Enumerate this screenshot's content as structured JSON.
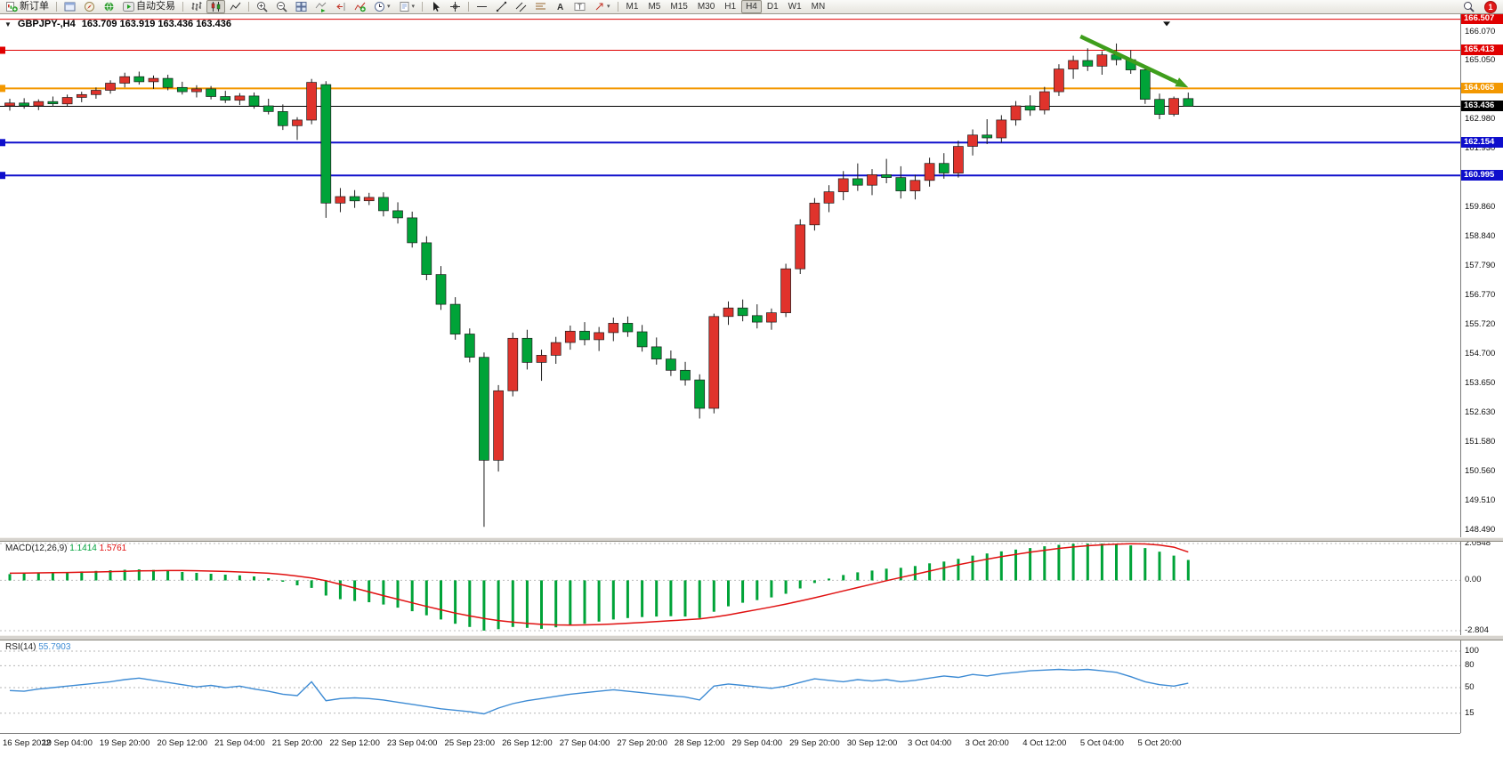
{
  "toolbar": {
    "new_order_label": "新订单",
    "autotrading_label": "自动交易",
    "timeframes": [
      "M1",
      "M5",
      "M15",
      "M30",
      "H1",
      "H4",
      "D1",
      "W1",
      "MN"
    ],
    "active_timeframe": "H4",
    "notification_badge": "1"
  },
  "icons": {
    "collapse": "▼",
    "caret": "▾"
  },
  "chart_title": {
    "symbol_period": "GBPJPY-,H4",
    "ohlc_text": "163.709 163.919 163.436 163.436"
  },
  "chart_data": {
    "type": "candlestick",
    "symbol": "GBPJPY-",
    "timeframe": "H4",
    "current_ohlc": {
      "open": "163.709",
      "high": "163.919",
      "low": "163.436",
      "close": "163.436"
    },
    "ylim": [
      148.23,
      166.62
    ],
    "colors": {
      "bull": "#e0332c",
      "bear": "#00a338",
      "outline": "#1c1c1c",
      "level_red": "#e00000",
      "level_orange": "#f39800",
      "level_blue": "#0e0ecc",
      "price_line": "#000000",
      "arrow": "#3f9e1c"
    },
    "price_ticks": [
      "166.070",
      "165.050",
      "162.980",
      "161.930",
      "159.860",
      "158.840",
      "157.790",
      "156.770",
      "155.720",
      "154.700",
      "153.650",
      "152.630",
      "151.580",
      "150.560",
      "149.510",
      "148.490"
    ],
    "price_tags": [
      {
        "text": "166.507",
        "value": 166.507,
        "bg": "#e00000"
      },
      {
        "text": "165.413",
        "value": 165.413,
        "bg": "#e00000"
      },
      {
        "text": "164.065",
        "value": 164.065,
        "bg": "#f39800"
      },
      {
        "text": "163.436",
        "value": 163.436,
        "bg": "#000000"
      },
      {
        "text": "162.154",
        "value": 162.154,
        "bg": "#0e0ecc"
      },
      {
        "text": "160.995",
        "value": 160.995,
        "bg": "#0e0ecc"
      }
    ],
    "levels": [
      {
        "price": 166.507,
        "color": "#e00000",
        "w": 1,
        "left_tag": false
      },
      {
        "price": 165.413,
        "color": "#e00000",
        "w": 1,
        "left_tag": true
      },
      {
        "price": 164.065,
        "color": "#f39800",
        "w": 2,
        "left_tag": true
      },
      {
        "price": 163.436,
        "color": "#000000",
        "w": 1,
        "left_tag": false
      },
      {
        "price": 162.154,
        "color": "#0e0ecc",
        "w": 2,
        "left_tag": true
      },
      {
        "price": 160.995,
        "color": "#0e0ecc",
        "w": 2,
        "left_tag": true
      }
    ],
    "annotation_arrow": {
      "x1_bar": 74.5,
      "y1_price": 165.9,
      "x2_bar": 82,
      "y2_price": 164.1
    },
    "marker_triangle": {
      "bar": 80.5,
      "price": 166.42
    },
    "label_stride": 4,
    "time_labels": [
      "16 Sep 2022",
      "19 Sep 04:00",
      "19 Sep 20:00",
      "20 Sep 12:00",
      "21 Sep 04:00",
      "21 Sep 20:00",
      "22 Sep 12:00",
      "23 Sep 04:00",
      "25 Sep 23:00",
      "26 Sep 12:00",
      "27 Sep 04:00",
      "27 Sep 20:00",
      "28 Sep 12:00",
      "29 Sep 04:00",
      "29 Sep 20:00",
      "30 Sep 12:00",
      "3 Oct 04:00",
      "3 Oct 20:00",
      "4 Oct 12:00",
      "5 Oct 04:00",
      "5 Oct 20:00"
    ],
    "candles": [
      [
        163.45,
        163.7,
        163.28,
        163.55
      ],
      [
        163.55,
        163.72,
        163.35,
        163.45
      ],
      [
        163.45,
        163.68,
        163.3,
        163.6
      ],
      [
        163.6,
        163.78,
        163.42,
        163.52
      ],
      [
        163.52,
        163.85,
        163.45,
        163.75
      ],
      [
        163.75,
        163.95,
        163.58,
        163.85
      ],
      [
        163.85,
        164.1,
        163.7,
        164.0
      ],
      [
        164.0,
        164.35,
        163.88,
        164.25
      ],
      [
        164.25,
        164.62,
        164.1,
        164.48
      ],
      [
        164.48,
        164.66,
        164.2,
        164.3
      ],
      [
        164.3,
        164.52,
        164.05,
        164.42
      ],
      [
        164.42,
        164.55,
        164.0,
        164.1
      ],
      [
        164.1,
        164.3,
        163.85,
        163.95
      ],
      [
        163.95,
        164.18,
        163.75,
        164.05
      ],
      [
        164.05,
        164.15,
        163.68,
        163.78
      ],
      [
        163.78,
        163.98,
        163.55,
        163.65
      ],
      [
        163.65,
        163.9,
        163.48,
        163.8
      ],
      [
        163.8,
        163.92,
        163.35,
        163.45
      ],
      [
        163.45,
        163.7,
        163.15,
        163.25
      ],
      [
        163.25,
        163.5,
        162.6,
        162.75
      ],
      [
        162.75,
        163.05,
        162.25,
        162.95
      ],
      [
        162.95,
        164.4,
        162.8,
        164.28
      ],
      [
        164.2,
        164.32,
        159.5,
        160.02
      ],
      [
        160.02,
        160.55,
        159.7,
        160.25
      ],
      [
        160.25,
        160.48,
        159.85,
        160.1
      ],
      [
        160.1,
        160.38,
        159.95,
        160.22
      ],
      [
        160.22,
        160.4,
        159.55,
        159.75
      ],
      [
        159.75,
        160.05,
        159.3,
        159.5
      ],
      [
        159.5,
        159.72,
        158.45,
        158.62
      ],
      [
        158.62,
        158.85,
        157.3,
        157.5
      ],
      [
        157.5,
        157.8,
        156.25,
        156.45
      ],
      [
        156.45,
        156.7,
        155.2,
        155.4
      ],
      [
        155.4,
        155.6,
        154.4,
        154.58
      ],
      [
        154.58,
        154.75,
        148.6,
        150.95
      ],
      [
        150.95,
        153.6,
        150.55,
        153.4
      ],
      [
        153.4,
        155.45,
        153.2,
        155.25
      ],
      [
        155.25,
        155.55,
        154.15,
        154.4
      ],
      [
        154.4,
        154.85,
        153.75,
        154.65
      ],
      [
        154.65,
        155.3,
        154.35,
        155.1
      ],
      [
        155.1,
        155.7,
        154.85,
        155.5
      ],
      [
        155.5,
        155.82,
        155.0,
        155.2
      ],
      [
        155.2,
        155.65,
        154.8,
        155.45
      ],
      [
        155.45,
        155.98,
        155.15,
        155.78
      ],
      [
        155.78,
        156.02,
        155.3,
        155.48
      ],
      [
        155.48,
        155.72,
        154.78,
        154.95
      ],
      [
        154.95,
        155.28,
        154.32,
        154.52
      ],
      [
        154.52,
        154.82,
        153.92,
        154.12
      ],
      [
        154.12,
        154.42,
        153.58,
        153.78
      ],
      [
        153.78,
        153.98,
        152.42,
        152.78
      ],
      [
        152.78,
        156.12,
        152.6,
        156.02
      ],
      [
        156.02,
        156.55,
        155.72,
        156.32
      ],
      [
        156.32,
        156.62,
        155.85,
        156.05
      ],
      [
        156.05,
        156.45,
        155.6,
        155.82
      ],
      [
        155.82,
        156.3,
        155.55,
        156.15
      ],
      [
        156.15,
        157.88,
        156.0,
        157.7
      ],
      [
        157.7,
        159.45,
        157.52,
        159.25
      ],
      [
        159.25,
        160.2,
        159.05,
        160.02
      ],
      [
        160.02,
        160.65,
        159.7,
        160.42
      ],
      [
        160.42,
        161.15,
        160.12,
        160.88
      ],
      [
        160.88,
        161.42,
        160.45,
        160.65
      ],
      [
        160.65,
        161.22,
        160.3,
        161.02
      ],
      [
        161.02,
        161.58,
        160.72,
        160.92
      ],
      [
        160.92,
        161.32,
        160.18,
        160.45
      ],
      [
        160.45,
        161.02,
        160.15,
        160.82
      ],
      [
        160.82,
        161.62,
        160.6,
        161.42
      ],
      [
        161.42,
        161.78,
        160.88,
        161.08
      ],
      [
        161.08,
        162.22,
        160.92,
        162.02
      ],
      [
        162.02,
        162.62,
        161.7,
        162.42
      ],
      [
        162.42,
        162.98,
        162.1,
        162.32
      ],
      [
        162.32,
        163.12,
        162.15,
        162.95
      ],
      [
        162.95,
        163.62,
        162.75,
        163.45
      ],
      [
        163.45,
        163.82,
        163.1,
        163.3
      ],
      [
        163.3,
        164.12,
        163.15,
        163.95
      ],
      [
        163.95,
        164.92,
        163.8,
        164.75
      ],
      [
        164.75,
        165.22,
        164.4,
        165.05
      ],
      [
        165.05,
        165.48,
        164.68,
        164.85
      ],
      [
        164.85,
        165.38,
        164.55,
        165.25
      ],
      [
        165.25,
        165.65,
        164.88,
        165.08
      ],
      [
        165.08,
        165.42,
        164.58,
        164.72
      ],
      [
        164.72,
        164.85,
        163.52,
        163.68
      ],
      [
        163.68,
        163.88,
        162.98,
        163.15
      ],
      [
        163.15,
        163.78,
        163.08,
        163.71
      ],
      [
        163.709,
        163.919,
        163.436,
        163.436
      ]
    ],
    "macd": {
      "title": "MACD(12,26,9)",
      "main_value": "1.1414",
      "signal_value": "1.5761",
      "hist_color": "#00a338",
      "signal_color": "#e01010",
      "ylim": [
        -3.052,
        2.154
      ],
      "axis_labels": [
        {
          "text": "2.0548",
          "v": 2.0548,
          "dashed": true
        },
        {
          "text": "0.00",
          "v": 0,
          "dashed": true
        },
        {
          "text": "-2.804",
          "v": -2.804,
          "dashed": true
        }
      ],
      "hist": [
        0.35,
        0.38,
        0.41,
        0.44,
        0.47,
        0.5,
        0.53,
        0.56,
        0.59,
        0.61,
        0.58,
        0.53,
        0.47,
        0.42,
        0.37,
        0.32,
        0.28,
        0.22,
        0.12,
        -0.08,
        -0.28,
        -0.42,
        -0.85,
        -1.05,
        -1.15,
        -1.22,
        -1.35,
        -1.52,
        -1.72,
        -1.95,
        -2.18,
        -2.42,
        -2.6,
        -2.8,
        -2.72,
        -2.6,
        -2.65,
        -2.7,
        -2.62,
        -2.52,
        -2.42,
        -2.3,
        -2.18,
        -2.1,
        -2.05,
        -2.02,
        -2.0,
        -2.02,
        -2.1,
        -1.75,
        -1.45,
        -1.25,
        -1.1,
        -0.95,
        -0.75,
        -0.45,
        -0.15,
        0.1,
        0.3,
        0.45,
        0.55,
        0.65,
        0.7,
        0.8,
        0.95,
        1.05,
        1.2,
        1.38,
        1.5,
        1.62,
        1.72,
        1.8,
        1.9,
        1.98,
        2.04,
        2.05,
        2.05,
        2.02,
        1.95,
        1.8,
        1.6,
        1.38,
        1.14
      ],
      "signal": [
        0.4,
        0.41,
        0.42,
        0.43,
        0.44,
        0.46,
        0.47,
        0.49,
        0.51,
        0.53,
        0.54,
        0.55,
        0.55,
        0.54,
        0.52,
        0.5,
        0.47,
        0.44,
        0.4,
        0.33,
        0.24,
        0.13,
        -0.02,
        -0.22,
        -0.43,
        -0.64,
        -0.85,
        -1.05,
        -1.25,
        -1.45,
        -1.64,
        -1.82,
        -1.98,
        -2.12,
        -2.24,
        -2.33,
        -2.4,
        -2.45,
        -2.48,
        -2.49,
        -2.48,
        -2.46,
        -2.43,
        -2.39,
        -2.35,
        -2.3,
        -2.25,
        -2.2,
        -2.15,
        -2.05,
        -1.92,
        -1.78,
        -1.63,
        -1.48,
        -1.32,
        -1.15,
        -0.97,
        -0.78,
        -0.59,
        -0.4,
        -0.21,
        -0.02,
        0.16,
        0.34,
        0.52,
        0.7,
        0.87,
        1.03,
        1.18,
        1.32,
        1.45,
        1.57,
        1.68,
        1.78,
        1.86,
        1.93,
        1.98,
        2.02,
        2.04,
        2.03,
        1.97,
        1.85,
        1.58
      ]
    },
    "rsi": {
      "title": "RSI(14)",
      "value": "55.7903",
      "color": "#3d8bd4",
      "ylim": [
        -9.76,
        114.6
      ],
      "levels": [
        {
          "text": "100",
          "v": 100,
          "dashed": true
        },
        {
          "text": "80",
          "v": 80,
          "dashed": true
        },
        {
          "text": "50",
          "v": 50,
          "dashed": true
        },
        {
          "text": "15",
          "v": 15,
          "dashed": true
        }
      ],
      "values": [
        46,
        45,
        48,
        50,
        52,
        54,
        56,
        58,
        61,
        63,
        60,
        57,
        54,
        51,
        53,
        50,
        52,
        48,
        45,
        41,
        39,
        58,
        32,
        35,
        36,
        35,
        33,
        30,
        27,
        24,
        21,
        19,
        17,
        14,
        22,
        28,
        32,
        35,
        38,
        41,
        43,
        45,
        47,
        45,
        43,
        41,
        39,
        37,
        33,
        52,
        55,
        53,
        51,
        49,
        52,
        57,
        62,
        60,
        58,
        61,
        59,
        61,
        58,
        60,
        63,
        66,
        64,
        68,
        66,
        69,
        71,
        73,
        74,
        75,
        74,
        75,
        73,
        71,
        65,
        58,
        54,
        52,
        56
      ]
    }
  }
}
